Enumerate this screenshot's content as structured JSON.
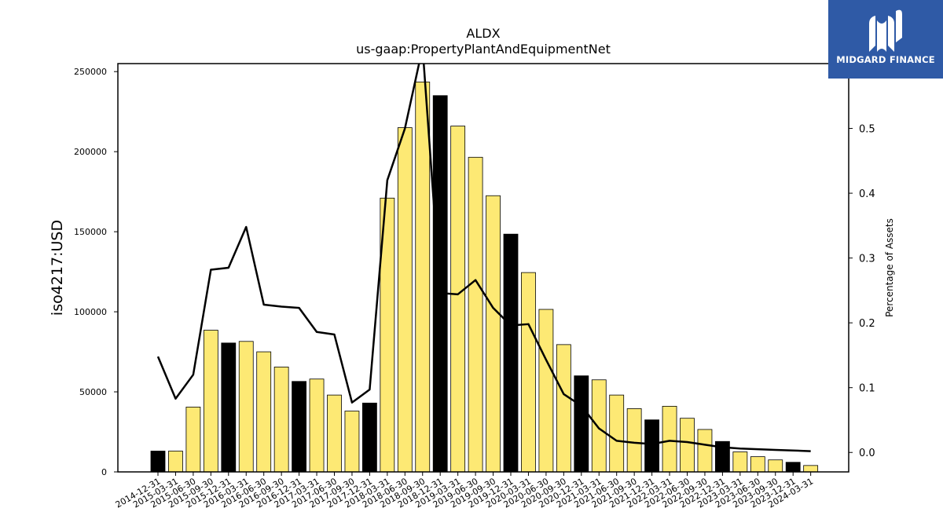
{
  "chart_data": {
    "type": "bar",
    "title": "ALDX",
    "subtitle": "us-gaap:PropertyPlantAndEquipmentNet",
    "ylabel": "iso4217:USD",
    "y2label": "Percentage of Assets",
    "ylim": [
      0,
      255000
    ],
    "y2lim": [
      -0.03,
      0.6
    ],
    "yticks": [
      0,
      50000,
      100000,
      150000,
      200000,
      250000
    ],
    "y2ticks": [
      0.0,
      0.1,
      0.2,
      0.3,
      0.4,
      0.5
    ],
    "categories": [
      "2014-12-31",
      "2015-03-31",
      "2015-06-30",
      "2015-09-30",
      "2015-12-31",
      "2016-03-31",
      "2016-06-30",
      "2016-09-30",
      "2016-12-31",
      "2017-03-31",
      "2017-06-30",
      "2017-09-30",
      "2017-12-31",
      "2018-03-31",
      "2018-06-30",
      "2018-09-30",
      "2018-12-31",
      "2019-03-31",
      "2019-06-30",
      "2019-09-30",
      "2019-12-31",
      "2020-03-31",
      "2020-06-30",
      "2020-09-30",
      "2020-12-31",
      "2021-03-31",
      "2021-06-30",
      "2021-09-30",
      "2021-12-31",
      "2022-03-31",
      "2022-06-30",
      "2022-09-30",
      "2022-12-31",
      "2023-03-31",
      "2023-06-30",
      "2023-09-30",
      "2023-12-31",
      "2024-03-31"
    ],
    "series": [
      {
        "name": "",
        "axis": "left",
        "kind": "bar",
        "values": [
          13000,
          13000,
          40500,
          88500,
          80500,
          81500,
          75000,
          65500,
          56500,
          58000,
          48000,
          38000,
          43000,
          171000,
          215000,
          243500,
          235000,
          216000,
          196500,
          172500,
          148500,
          124500,
          101500,
          79500,
          60000,
          57500,
          48000,
          39500,
          32500,
          41000,
          33500,
          26500,
          19000,
          12500,
          9500,
          7500,
          6000,
          4000
        ]
      },
      {
        "name": "",
        "axis": "right",
        "kind": "line",
        "values": [
          0.148,
          0.083,
          0.12,
          0.282,
          0.285,
          0.348,
          0.228,
          0.225,
          0.223,
          0.186,
          0.182,
          0.077,
          0.097,
          0.42,
          0.5,
          0.625,
          0.246,
          0.244,
          0.266,
          0.223,
          0.196,
          0.198,
          0.143,
          0.09,
          0.072,
          0.037,
          0.018,
          0.015,
          0.013,
          0.018,
          0.016,
          0.012,
          0.008,
          0.006,
          0.005,
          0.004,
          0.003,
          0.002
        ]
      }
    ],
    "bar_colors": {
      "annual": "#000000",
      "quarter": "#fde974",
      "edge": "#000000"
    },
    "line_color": "#000000",
    "annual_suffix": "-12-31",
    "grid": false,
    "legend": "none"
  },
  "logo": {
    "text": "MIDGARD FINANCE",
    "background": "#2f5aa6",
    "icon": "midgard-logo-icon"
  }
}
